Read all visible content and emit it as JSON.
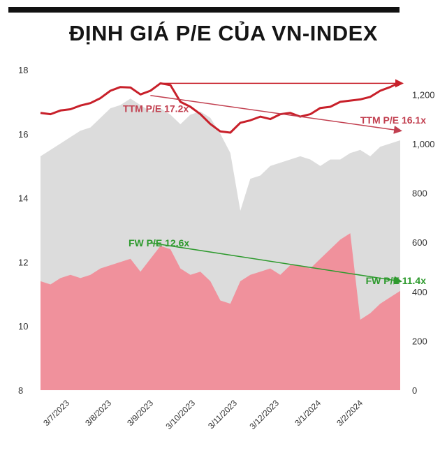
{
  "title": "ĐỊNH GIÁ P/E CỦA VN-INDEX",
  "chart_data": {
    "type": "area",
    "title": "ĐỊNH GIÁ P/E CỦA VN-INDEX",
    "xlabel": "",
    "ylabel": "",
    "grid": false,
    "x_tick_labels": [
      "3/7/2023",
      "3/8/2023",
      "3/9/2023",
      "3/10/2023",
      "3/11/2023",
      "3/12/2023",
      "3/1/2024",
      "3/2/2024"
    ],
    "y_left": {
      "ticks": [
        8,
        10,
        12,
        14,
        16,
        18
      ],
      "ylim": [
        8,
        18
      ]
    },
    "y_right": {
      "ticks": [
        "0",
        "200",
        "400",
        "600",
        "800",
        "1,000",
        "1,200"
      ],
      "ylim": [
        0,
        1300
      ]
    },
    "colors": {
      "ttm_area": "#dcdcdc",
      "fw_area": "#f0919c",
      "vnindex_line": "#c8202a",
      "ttm_trend": "#c24050",
      "fw_trend": "#2e9a2e"
    },
    "series": [
      {
        "name": "TTM P/E",
        "axis": "left",
        "values": [
          15.3,
          15.5,
          15.7,
          15.9,
          16.1,
          16.2,
          16.5,
          16.8,
          16.9,
          17.1,
          16.9,
          16.7,
          16.8,
          16.6,
          16.3,
          16.6,
          16.7,
          16.5,
          16.0,
          15.4,
          13.6,
          14.6,
          14.7,
          15.0,
          15.1,
          15.2,
          15.3,
          15.2,
          15.0,
          15.2,
          15.2,
          15.4,
          15.5,
          15.3,
          15.6,
          15.7,
          15.8
        ]
      },
      {
        "name": "FW P/E",
        "axis": "left",
        "values": [
          11.4,
          11.3,
          11.5,
          11.6,
          11.5,
          11.6,
          11.8,
          11.9,
          12.0,
          12.1,
          11.7,
          12.1,
          12.5,
          12.4,
          11.8,
          11.6,
          11.7,
          11.4,
          10.8,
          10.7,
          11.4,
          11.6,
          11.7,
          11.8,
          11.6,
          11.9,
          11.9,
          11.8,
          12.1,
          12.4,
          12.7,
          12.9,
          10.2,
          10.4,
          10.7,
          10.9,
          11.1
        ]
      },
      {
        "name": "VN-Index",
        "axis": "right",
        "values": [
          1125,
          1120,
          1135,
          1140,
          1155,
          1165,
          1185,
          1215,
          1230,
          1228,
          1200,
          1215,
          1245,
          1238,
          1170,
          1150,
          1120,
          1080,
          1050,
          1045,
          1085,
          1095,
          1110,
          1100,
          1120,
          1125,
          1110,
          1120,
          1145,
          1150,
          1170,
          1175,
          1180,
          1190,
          1215,
          1230,
          1250
        ]
      }
    ],
    "annotations": [
      {
        "text": "TTM P/E 17.2x",
        "value": 17.2,
        "color": "#c24050"
      },
      {
        "text": "TTM P/E 16.1x",
        "value": 16.1,
        "color": "#c24050"
      },
      {
        "text": "FW P/E 12.6x",
        "value": 12.6,
        "color": "#2e9a2e"
      },
      {
        "text": "FW P/E 11.4x",
        "value": 11.4,
        "color": "#2e9a2e"
      }
    ]
  }
}
